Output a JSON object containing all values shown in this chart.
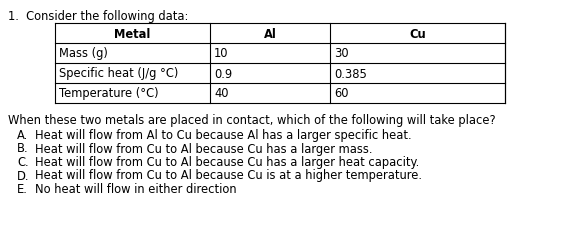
{
  "title": "1.  Consider the following data:",
  "table": {
    "headers": [
      "Metal",
      "Al",
      "Cu"
    ],
    "rows": [
      [
        "Mass (g)",
        "10",
        "30"
      ],
      [
        "Specific heat (J/g °C)",
        "0.9",
        "0.385"
      ],
      [
        "Temperature (°C)",
        "40",
        "60"
      ]
    ]
  },
  "question": "When these two metals are placed in contact, which of the following will take place?",
  "choices": [
    [
      "A.",
      "Heat will flow from Al to Cu because Al has a larger specific heat."
    ],
    [
      "B.",
      "Heat will flow from Cu to Al because Cu has a larger mass."
    ],
    [
      "C.",
      "Heat will flow from Cu to Al because Cu has a larger heat capacity."
    ],
    [
      "D.",
      "Heat will flow from Cu to Al because Cu is at a higher temperature."
    ],
    [
      "E.",
      "No heat will flow in either direction"
    ]
  ],
  "font_size": 8.3,
  "bg_color": "#ffffff",
  "text_color": "#000000"
}
